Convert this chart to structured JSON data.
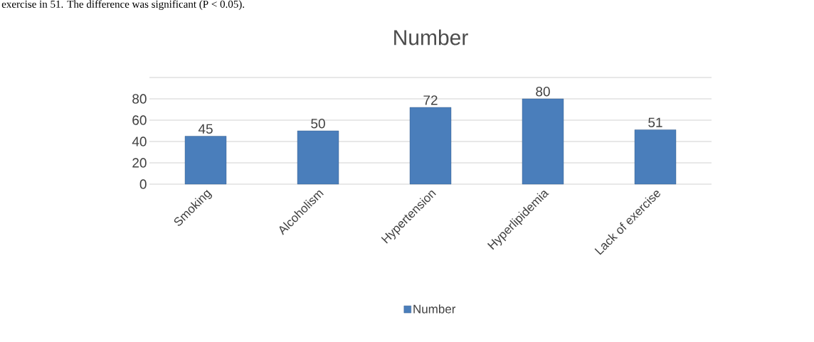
{
  "chart_data": {
    "type": "bar",
    "title": "Number",
    "categories": [
      "Smoking",
      "Alcoholism",
      "Hypertension",
      "Hyperlipidemia",
      "Lack of exercise"
    ],
    "series": [
      {
        "name": "Number",
        "color": "#4a7ebb",
        "values": [
          45,
          50,
          72,
          80,
          51
        ]
      }
    ],
    "ylim": [
      0,
      100
    ],
    "yticks": [
      0,
      20,
      40,
      60,
      80,
      {
        "value": 100,
        "label": null
      }
    ],
    "grid": "y",
    "data_labels": true,
    "legend": "bottom",
    "annotations": [
      "exercise in 51. The difference was significant (P < 0.05)."
    ]
  }
}
